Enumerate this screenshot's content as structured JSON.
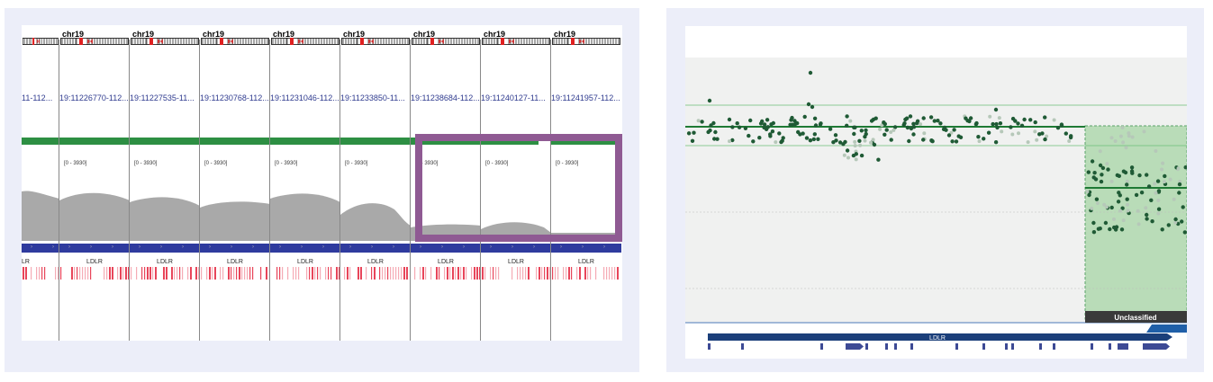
{
  "igv": {
    "columns": [
      {
        "chr": "",
        "locus": "11-112...",
        "range": "",
        "gene": "LR"
      },
      {
        "chr": "chr19",
        "locus": "19:11226770-112...",
        "range": "[0 - 3930]",
        "gene": "LDLR"
      },
      {
        "chr": "chr19",
        "locus": "19:11227535-11...",
        "range": "[0 - 3930]",
        "gene": "LDLR"
      },
      {
        "chr": "chr19",
        "locus": "19:11230768-112...",
        "range": "[0 - 3930]",
        "gene": "LDLR"
      },
      {
        "chr": "chr19",
        "locus": "19:11231046-112...",
        "range": "[0 - 3930]",
        "gene": "LDLR"
      },
      {
        "chr": "chr19",
        "locus": "19:11233850-11...",
        "range": "[0 - 3930]",
        "gene": "LDLR"
      },
      {
        "chr": "chr19",
        "locus": "19:11238684-112...",
        "range": "[0 - 3930]",
        "gene": "LDLR"
      },
      {
        "chr": "chr19",
        "locus": "19:11240127-11...",
        "range": "[0 - 3930]",
        "gene": "LDLR"
      },
      {
        "chr": "chr19",
        "locus": "19:11241957-112...",
        "range": "[0 - 3930]",
        "gene": "LDLR"
      }
    ],
    "highlight_color": "#8f5a93"
  },
  "plot": {
    "classification_label": "Unclassified",
    "gene_label": "LDLR"
  },
  "colors": {
    "coverage": "#a9a9a9",
    "gene_track": "#2f3b9e",
    "variant": "#e8455a",
    "dot": "#1f5a35",
    "region_fill": "#b9dcb8"
  }
}
